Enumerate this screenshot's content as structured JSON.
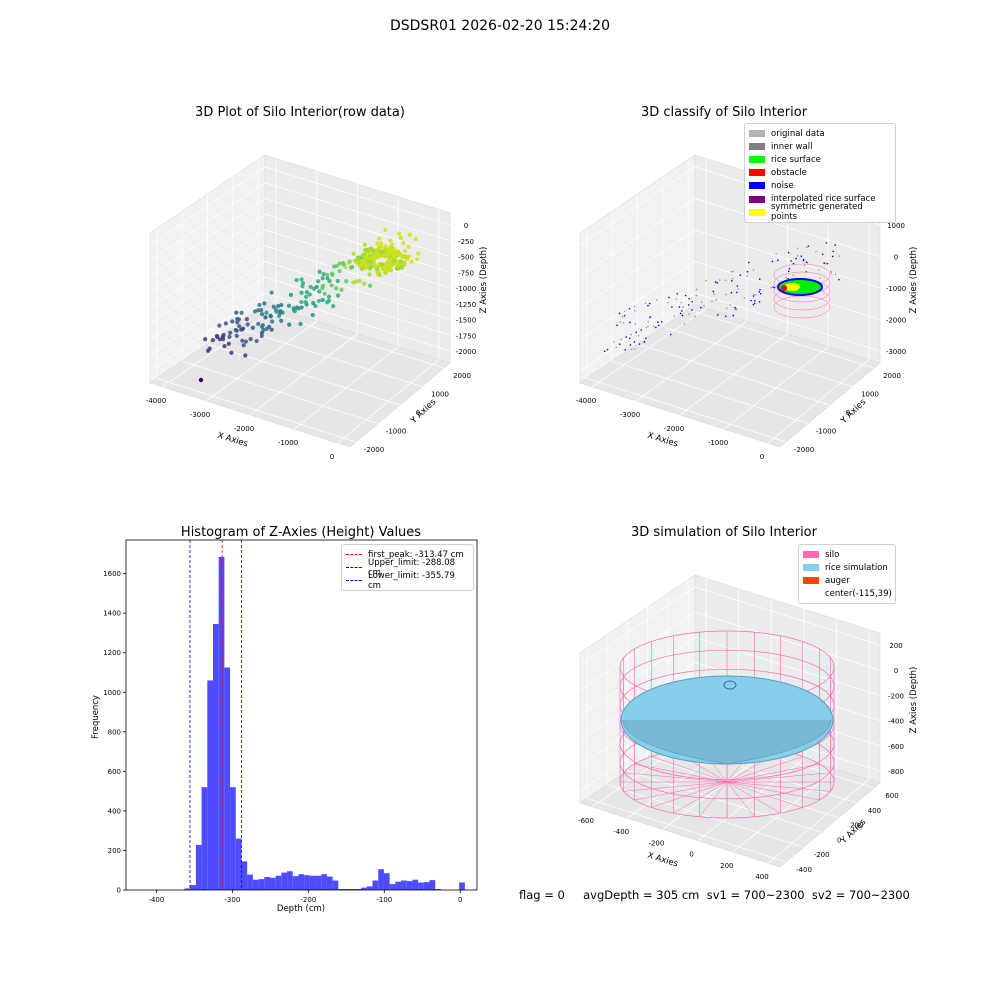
{
  "suptitle": "DSDSR01 2026-02-20 15:24:20",
  "footer": "flag = 0     avgDepth = 305 cm  sv1 = 700~2300  sv2 = 700~2300",
  "chart_data": [
    {
      "type": "scatter",
      "title": "3D Plot of Silo Interior(row data)",
      "xlabel": "X Axies",
      "ylabel": "Y Axies",
      "zlabel": "Z Axies (Depth)",
      "xticks": [
        "-4000",
        "-3000",
        "-2000",
        "-1000",
        "0"
      ],
      "yticks": [
        "-2000",
        "-1000",
        "0",
        "1000",
        "2000"
      ],
      "zticks": [
        "0",
        "-250",
        "-500",
        "-750",
        "-1000",
        "-1250",
        "-1500",
        "-1750",
        "-2000"
      ],
      "colormap": "viridis"
    },
    {
      "type": "scatter",
      "title": "3D classify of Silo Interior",
      "xlabel": "X Axies",
      "ylabel": "Y Axies",
      "zlabel": "Z Axies (Depth)",
      "xticks": [
        "-4000",
        "-3000",
        "-2000",
        "-1000",
        "0"
      ],
      "yticks": [
        "-2000",
        "-1000",
        "0",
        "1000",
        "2000"
      ],
      "zticks": [
        "1000",
        "0",
        "-1000",
        "-2000",
        "-3000"
      ],
      "legend": [
        {
          "label": "original data",
          "color": "#b3b3b3"
        },
        {
          "label": "inner wall",
          "color": "#808080"
        },
        {
          "label": "rice surface",
          "color": "#00ff00"
        },
        {
          "label": "obstacle",
          "color": "#ff0000"
        },
        {
          "label": "noise",
          "color": "#0000ff"
        },
        {
          "label": "interpolated rice surface",
          "color": "#800080"
        },
        {
          "label": "symmetric generated points",
          "color": "#ffff00"
        }
      ]
    },
    {
      "type": "bar",
      "title": "Histogram of Z-Axies (Height) Values",
      "xlabel": "Depth (cm)",
      "ylabel": "Frequency",
      "xlim": [
        -440,
        22
      ],
      "ylim": [
        0,
        1770
      ],
      "xticks": [
        -400,
        -300,
        -200,
        -100,
        0
      ],
      "yticks": [
        0,
        200,
        400,
        600,
        800,
        1000,
        1200,
        1400,
        1600
      ],
      "bin_width": 7.5,
      "bins": [
        [
          -363,
          8
        ],
        [
          -355.5,
          25
        ],
        [
          -348,
          228
        ],
        [
          -340.5,
          520
        ],
        [
          -333,
          1060
        ],
        [
          -325.5,
          1345
        ],
        [
          -318,
          1685
        ],
        [
          -310.5,
          1125
        ],
        [
          -303,
          520
        ],
        [
          -295.5,
          260
        ],
        [
          -288,
          145
        ],
        [
          -280.5,
          78
        ],
        [
          -273,
          52
        ],
        [
          -265.5,
          55
        ],
        [
          -258,
          66
        ],
        [
          -250.5,
          62
        ],
        [
          -243,
          72
        ],
        [
          -235.5,
          88
        ],
        [
          -228,
          95
        ],
        [
          -220.5,
          70
        ],
        [
          -213,
          80
        ],
        [
          -205.5,
          75
        ],
        [
          -198,
          72
        ],
        [
          -190.5,
          72
        ],
        [
          -183,
          80
        ],
        [
          -175.5,
          68
        ],
        [
          -168,
          48
        ],
        [
          -160.5,
          5
        ],
        [
          -153,
          5
        ],
        [
          -145.5,
          5
        ],
        [
          -138,
          5
        ],
        [
          -130.5,
          12
        ],
        [
          -123,
          18
        ],
        [
          -115.5,
          48
        ],
        [
          -108,
          105
        ],
        [
          -100.5,
          85
        ],
        [
          -93,
          30
        ],
        [
          -85.5,
          42
        ],
        [
          -78,
          48
        ],
        [
          -70.5,
          45
        ],
        [
          -63,
          52
        ],
        [
          -55.5,
          38
        ],
        [
          -48,
          40
        ],
        [
          -40.5,
          50
        ],
        [
          -33,
          5
        ],
        [
          -1.5,
          38
        ]
      ],
      "lines": [
        {
          "label": "first_peak: -313.47 cm",
          "value": -313.47,
          "color": "#ff0000"
        },
        {
          "label": "Upper_limit: -288.08 cm",
          "value": -288.08,
          "color": "#0000cc"
        },
        {
          "label": "Lower_limit: -355.79 cm",
          "value": -355.79,
          "color": "#0000cc"
        }
      ],
      "bar_color": "#4d4dff"
    },
    {
      "type": "scatter",
      "title": "3D simulation of Silo Interior",
      "xlabel": "X Axies",
      "ylabel": "Y Axies",
      "zlabel": "Z Axies (Depth)",
      "xticks": [
        "-600",
        "-400",
        "-200",
        "0",
        "200",
        "400"
      ],
      "yticks": [
        "-400",
        "-200",
        "0",
        "200",
        "400",
        "600"
      ],
      "zticks": [
        "200",
        "0",
        "-200",
        "-400",
        "-600",
        "-800"
      ],
      "legend": [
        {
          "label": "silo",
          "color": "#ff69b4"
        },
        {
          "label": "rice simulation",
          "color": "#87ceeb"
        },
        {
          "label": "auger",
          "color": "#ff4500"
        },
        {
          "label": "center(-115,39)",
          "color": ""
        }
      ]
    }
  ]
}
